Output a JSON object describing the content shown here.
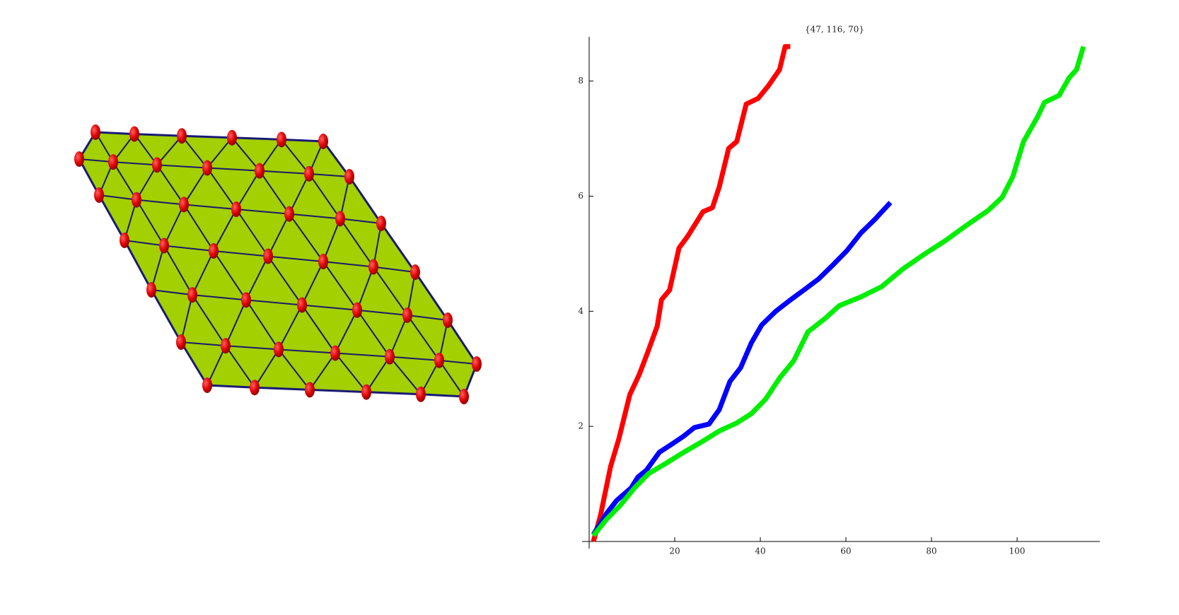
{
  "chart_data": {
    "type": "line",
    "title": "{47, 116, 70}",
    "xlim": [
      0,
      118
    ],
    "ylim": [
      0,
      8.77
    ],
    "xticks": [
      20,
      40,
      60,
      80,
      100
    ],
    "yticks": [
      2,
      4,
      6,
      8
    ],
    "series": [
      {
        "color": "#ff0000",
        "x": [
          1,
          2.7,
          5,
          7,
          9.5,
          11.7,
          13.6,
          15.9,
          16.9,
          18.8,
          21,
          23,
          26.6,
          28.8,
          30.4,
          32.6,
          34.5,
          36.7,
          39.5,
          42,
          44.5,
          45.8,
          47
        ],
        "values": [
          0,
          0.47,
          1.3,
          1.8,
          2.55,
          2.9,
          3.27,
          3.74,
          4.2,
          4.37,
          5.1,
          5.3,
          5.73,
          5.8,
          6.16,
          6.83,
          6.95,
          7.6,
          7.7,
          7.93,
          8.2,
          8.6,
          8.6
        ]
      },
      {
        "color": "#0000ff",
        "x": [
          1,
          4,
          6.4,
          9.8,
          11.4,
          13.4,
          16.4,
          19.7,
          22.1,
          24.6,
          28,
          30.4,
          32.9,
          35.4,
          37.9,
          40.3,
          43.6,
          46.9,
          50.2,
          53.6,
          56.9,
          60.2,
          63.5,
          66.8,
          70.4
        ],
        "values": [
          0.12,
          0.48,
          0.71,
          0.93,
          1.12,
          1.24,
          1.55,
          1.71,
          1.83,
          1.98,
          2.04,
          2.29,
          2.78,
          3.02,
          3.45,
          3.76,
          4.0,
          4.19,
          4.37,
          4.56,
          4.8,
          5.05,
          5.36,
          5.6,
          5.89
        ]
      },
      {
        "color": "#00ee00",
        "x": [
          1,
          4,
          7.3,
          10.6,
          13.9,
          18,
          22.1,
          26.3,
          30.4,
          34.5,
          37.9,
          41.2,
          44.5,
          47.8,
          51.1,
          55.2,
          58.5,
          63.5,
          68.4,
          73.4,
          78.3,
          83.3,
          88.3,
          93.2,
          96.5,
          99,
          101.5,
          104.8,
          106.4,
          109.8,
          112.2,
          113.9,
          115.5
        ],
        "values": [
          0.1,
          0.38,
          0.63,
          0.93,
          1.18,
          1.36,
          1.55,
          1.73,
          1.92,
          2.06,
          2.22,
          2.47,
          2.84,
          3.14,
          3.64,
          3.88,
          4.1,
          4.25,
          4.43,
          4.74,
          4.99,
          5.23,
          5.5,
          5.75,
          5.98,
          6.34,
          6.95,
          7.38,
          7.63,
          7.75,
          8.06,
          8.2,
          8.6
        ]
      }
    ]
  }
}
